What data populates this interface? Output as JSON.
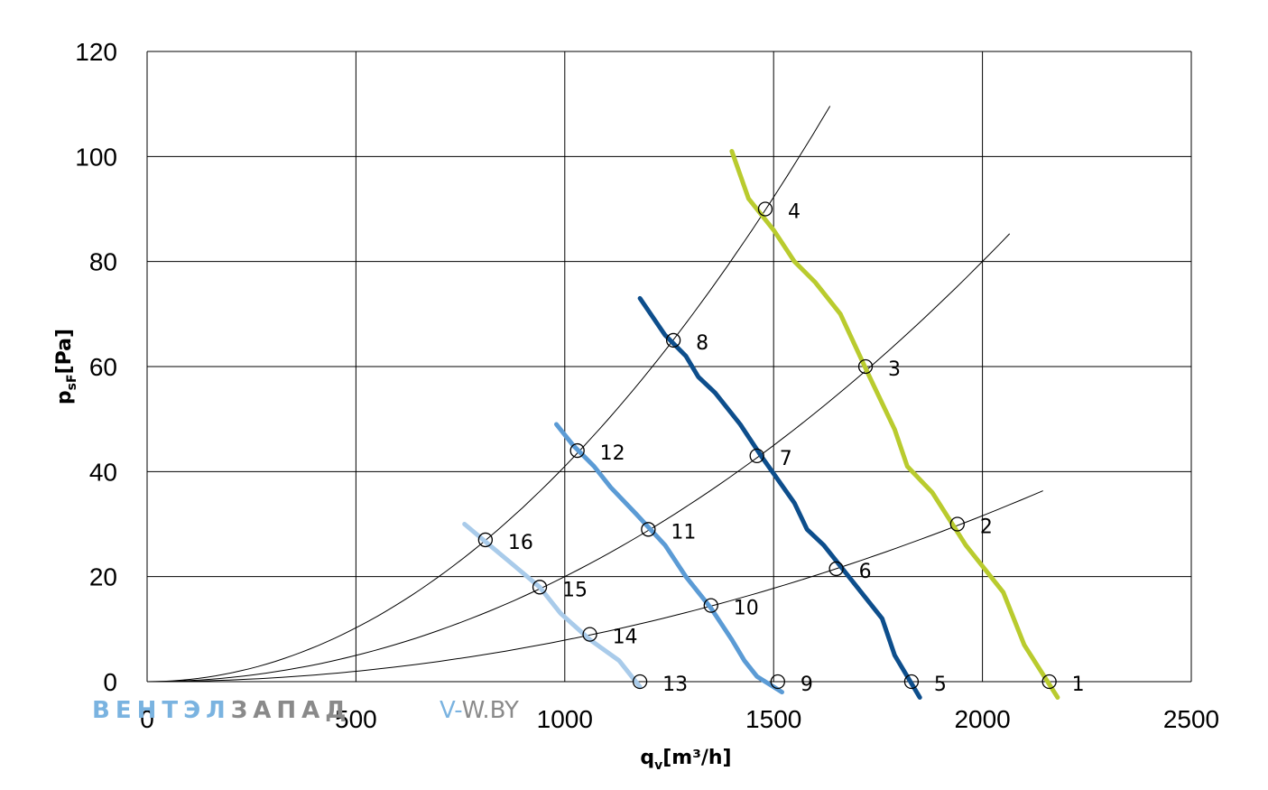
{
  "chart_data": {
    "type": "line",
    "xlabel": "q",
    "xlabel_sub": "v",
    "xlabel_unit": "[m³/h]",
    "ylabel": "p",
    "ylabel_sub": "sF",
    "ylabel_unit": "[Pa]",
    "xlim": [
      0,
      2500
    ],
    "ylim": [
      0,
      120
    ],
    "xticks": [
      0,
      500,
      1000,
      1500,
      2000,
      2500
    ],
    "yticks": [
      0,
      20,
      40,
      60,
      80,
      100,
      120
    ],
    "grid": true,
    "series": [
      {
        "color": "#b9cb2e",
        "width": 5,
        "points": [
          [
            1400,
            101
          ],
          [
            1440,
            92
          ],
          [
            1500,
            86
          ],
          [
            1550,
            80
          ],
          [
            1600,
            76
          ],
          [
            1660,
            70
          ],
          [
            1730,
            58
          ],
          [
            1790,
            48
          ],
          [
            1820,
            41
          ],
          [
            1880,
            36
          ],
          [
            1960,
            26
          ],
          [
            2050,
            17
          ],
          [
            2100,
            7
          ],
          [
            2180,
            -3
          ]
        ]
      },
      {
        "color": "#0d4e8c",
        "width": 5,
        "points": [
          [
            1180,
            73
          ],
          [
            1240,
            66
          ],
          [
            1290,
            62
          ],
          [
            1320,
            58
          ],
          [
            1360,
            55
          ],
          [
            1420,
            49
          ],
          [
            1470,
            43
          ],
          [
            1550,
            34
          ],
          [
            1580,
            29
          ],
          [
            1620,
            26
          ],
          [
            1680,
            20
          ],
          [
            1760,
            12
          ],
          [
            1790,
            5
          ],
          [
            1850,
            -3
          ]
        ]
      },
      {
        "color": "#5b9bd5",
        "width": 5,
        "points": [
          [
            980,
            49
          ],
          [
            1020,
            45
          ],
          [
            1070,
            41
          ],
          [
            1110,
            37
          ],
          [
            1170,
            32
          ],
          [
            1240,
            26
          ],
          [
            1290,
            20
          ],
          [
            1350,
            14
          ],
          [
            1400,
            8
          ],
          [
            1430,
            4
          ],
          [
            1460,
            1
          ],
          [
            1520,
            -2
          ]
        ]
      },
      {
        "color": "#a9cbea",
        "width": 5,
        "points": [
          [
            760,
            30
          ],
          [
            820,
            26
          ],
          [
            880,
            22
          ],
          [
            940,
            18
          ],
          [
            990,
            13
          ],
          [
            1060,
            8
          ],
          [
            1130,
            4
          ],
          [
            1180,
            -1
          ]
        ]
      }
    ],
    "system_curves": [
      {
        "k": 4.1e-05,
        "xmax": 1635,
        "color": "#000000"
      },
      {
        "k": 2e-05,
        "xmax": 2065,
        "color": "#000000"
      },
      {
        "k": 7.9e-06,
        "xmax": 2145,
        "color": "#000000"
      }
    ],
    "points": [
      {
        "label": "1",
        "x": 2160,
        "y": 0
      },
      {
        "label": "2",
        "x": 1940,
        "y": 30
      },
      {
        "label": "3",
        "x": 1720,
        "y": 60
      },
      {
        "label": "4",
        "x": 1480,
        "y": 90
      },
      {
        "label": "5",
        "x": 1830,
        "y": 0
      },
      {
        "label": "6",
        "x": 1650,
        "y": 21.5
      },
      {
        "label": "7",
        "x": 1460,
        "y": 43
      },
      {
        "label": "8",
        "x": 1260,
        "y": 65
      },
      {
        "label": "9",
        "x": 1510,
        "y": 0
      },
      {
        "label": "10",
        "x": 1350,
        "y": 14.5
      },
      {
        "label": "11",
        "x": 1200,
        "y": 29
      },
      {
        "label": "12",
        "x": 1030,
        "y": 44
      },
      {
        "label": "13",
        "x": 1180,
        "y": 0
      },
      {
        "label": "14",
        "x": 1060,
        "y": 9
      },
      {
        "label": "15",
        "x": 940,
        "y": 18
      },
      {
        "label": "16",
        "x": 810,
        "y": 27
      }
    ]
  },
  "watermark": {
    "part1": "ВЕНТЭЛ",
    "part2": "ЗАПАД",
    "part3": "V-",
    "part4": "W.BY",
    "color_blue": "#7ab3e0",
    "color_gray": "#8a8a8a"
  }
}
